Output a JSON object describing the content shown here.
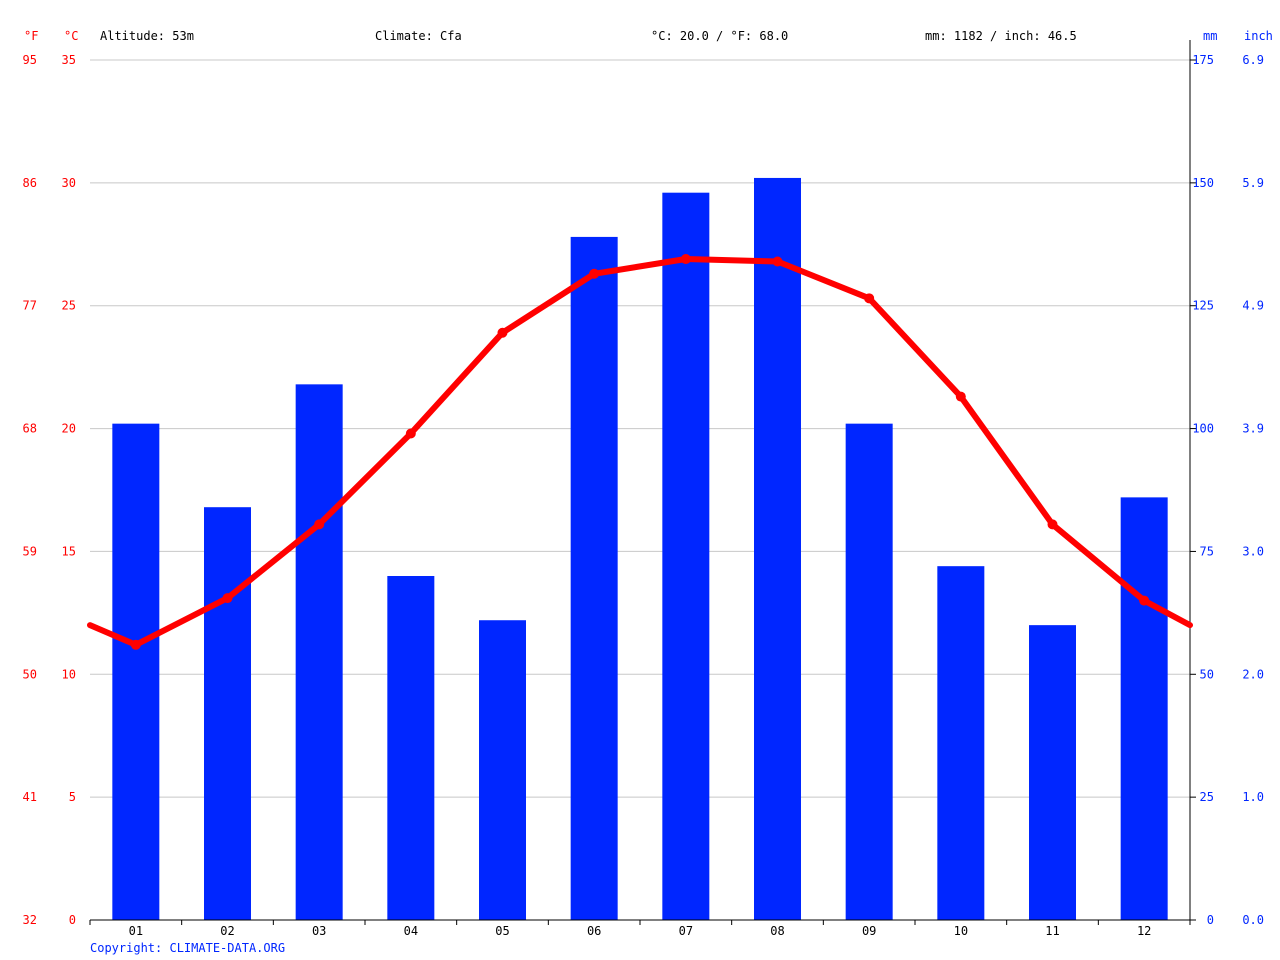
{
  "header": {
    "unit_f": "°F",
    "unit_c": "°C",
    "altitude": "Altitude: 53m",
    "climate": "Climate: Cfa",
    "temp_avg": "°C: 20.0 / °F: 68.0",
    "precip_total": "mm: 1182 / inch: 46.5",
    "unit_mm": "mm",
    "unit_inch": "inch"
  },
  "copyright": "Copyright: CLIMATE-DATA.ORG",
  "colors": {
    "temperature": "#ff0000",
    "precipitation": "#0026ff",
    "grid": "#c8c8c8",
    "axis": "#000000"
  },
  "chart_data": {
    "type": "bar",
    "categories": [
      "01",
      "02",
      "03",
      "04",
      "05",
      "06",
      "07",
      "08",
      "09",
      "10",
      "11",
      "12"
    ],
    "series": [
      {
        "values": [
          101,
          84,
          109,
          70,
          61,
          139,
          148,
          151,
          101,
          72,
          60,
          86
        ]
      },
      {
        "values": [
          11.2,
          13.1,
          16.1,
          19.8,
          23.9,
          26.3,
          26.9,
          26.8,
          25.3,
          21.3,
          16.1,
          13.0
        ]
      }
    ],
    "left_axis_c": {
      "ticks": [
        0,
        5,
        10,
        15,
        20,
        25,
        30,
        35
      ],
      "ylim": [
        0,
        35
      ]
    },
    "left_axis_f": {
      "ticks": [
        "32",
        "41",
        "50",
        "59",
        "68",
        "77",
        "86",
        "95"
      ]
    },
    "right_axis_mm": {
      "ticks": [
        "0",
        "25",
        "50",
        "75",
        "100",
        "125",
        "150",
        "175"
      ],
      "ylim": [
        0,
        175
      ]
    },
    "right_axis_inch": {
      "ticks": [
        "0.0",
        "1.0",
        "2.0",
        "3.0",
        "3.9",
        "4.9",
        "5.9",
        "6.9"
      ]
    },
    "temp_line_edges": {
      "start": 12.0,
      "end": 12.0
    },
    "grid": true
  }
}
